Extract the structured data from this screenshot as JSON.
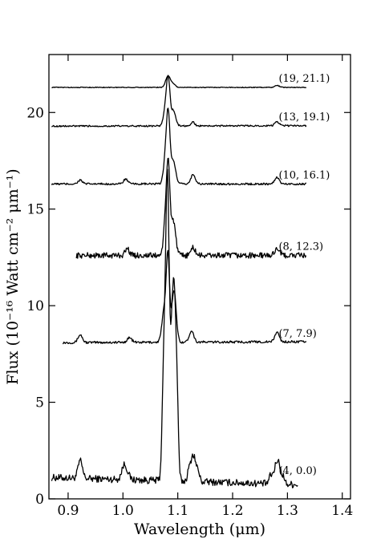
{
  "chart_data": {
    "type": "line",
    "xlabel": "Wavelength (μm)",
    "ylabel": "Flux (10⁻¹⁶ Watt cm⁻² μm⁻¹)",
    "xlim": [
      0.865,
      1.415
    ],
    "ylim": [
      0,
      23
    ],
    "x_ticks": [
      0.9,
      1.0,
      1.1,
      1.2,
      1.3,
      1.4
    ],
    "x_tick_labels": [
      "0.9",
      "1.0",
      "1.1",
      "1.2",
      "1.3",
      "1.4"
    ],
    "y_ticks": [
      0,
      5,
      10,
      15,
      20
    ],
    "y_tick_labels": [
      "0",
      "5",
      "10",
      "15",
      "20"
    ],
    "grid": false,
    "line_color": "#000000",
    "series": [
      {
        "name": "(4, 0.0)",
        "x_start": 0.87,
        "x_end": 1.32,
        "baseline": 1.0,
        "slope": -0.8,
        "noise": 0.18,
        "features": [
          [
            0.922,
            0.9,
            0.004
          ],
          [
            1.001,
            0.6,
            0.004
          ],
          [
            1.007,
            0.4,
            0.004
          ],
          [
            1.079,
            5.4,
            0.004
          ],
          [
            1.0815,
            6.9,
            0.0025
          ],
          [
            1.0925,
            5.9,
            0.004
          ],
          [
            1.128,
            0.8,
            0.004
          ],
          [
            1.282,
            0.8,
            0.004
          ]
        ],
        "plateaus": [
          [
            1.071,
            1.101,
            4.6
          ],
          [
            1.117,
            1.14,
            0.6
          ],
          [
            1.266,
            1.295,
            0.45
          ]
        ]
      },
      {
        "name": "(7, 7.9)",
        "x_start": 0.89,
        "x_end": 1.335,
        "baseline": 8.1,
        "slope": 0.1,
        "noise": 0.06,
        "features": [
          [
            0.922,
            0.4,
            0.004
          ],
          [
            1.012,
            0.25,
            0.004
          ],
          [
            1.075,
            1.6,
            0.004
          ],
          [
            1.082,
            4.3,
            0.003
          ],
          [
            1.093,
            2.7,
            0.004
          ],
          [
            1.125,
            0.6,
            0.004
          ],
          [
            1.281,
            0.5,
            0.004
          ]
        ]
      },
      {
        "name": "(8, 12.3)",
        "x_start": 0.915,
        "x_end": 1.335,
        "baseline": 12.6,
        "slope": 0.0,
        "noise": 0.15,
        "features": [
          [
            1.008,
            0.35,
            0.004
          ],
          [
            1.079,
            2.2,
            0.004
          ],
          [
            1.083,
            3.5,
            0.003
          ],
          [
            1.092,
            1.8,
            0.004
          ],
          [
            1.128,
            0.4,
            0.004
          ],
          [
            1.281,
            0.4,
            0.004
          ]
        ]
      },
      {
        "name": "(10, 16.1)",
        "x_start": 0.87,
        "x_end": 1.335,
        "baseline": 16.3,
        "slope": 0.0,
        "noise": 0.05,
        "features": [
          [
            0.922,
            0.2,
            0.004
          ],
          [
            1.005,
            0.25,
            0.004
          ],
          [
            1.079,
            1.8,
            0.004
          ],
          [
            1.083,
            2.7,
            0.003
          ],
          [
            1.092,
            1.2,
            0.004
          ],
          [
            1.128,
            0.5,
            0.004
          ],
          [
            1.281,
            0.35,
            0.004
          ]
        ]
      },
      {
        "name": "(13, 19.1)",
        "x_start": 0.87,
        "x_end": 1.335,
        "baseline": 19.3,
        "slope": 0.05,
        "noise": 0.04,
        "features": [
          [
            1.079,
            1.2,
            0.004
          ],
          [
            1.083,
            1.8,
            0.003
          ],
          [
            1.092,
            0.8,
            0.004
          ],
          [
            1.128,
            0.2,
            0.003
          ],
          [
            1.281,
            0.2,
            0.004
          ]
        ]
      },
      {
        "name": "(19, 21.1)",
        "x_start": 0.87,
        "x_end": 1.335,
        "baseline": 21.3,
        "slope": 0.0,
        "noise": 0.02,
        "features": [
          [
            1.082,
            0.6,
            0.004
          ],
          [
            1.091,
            0.2,
            0.004
          ],
          [
            1.281,
            0.1,
            0.004
          ]
        ]
      }
    ]
  }
}
